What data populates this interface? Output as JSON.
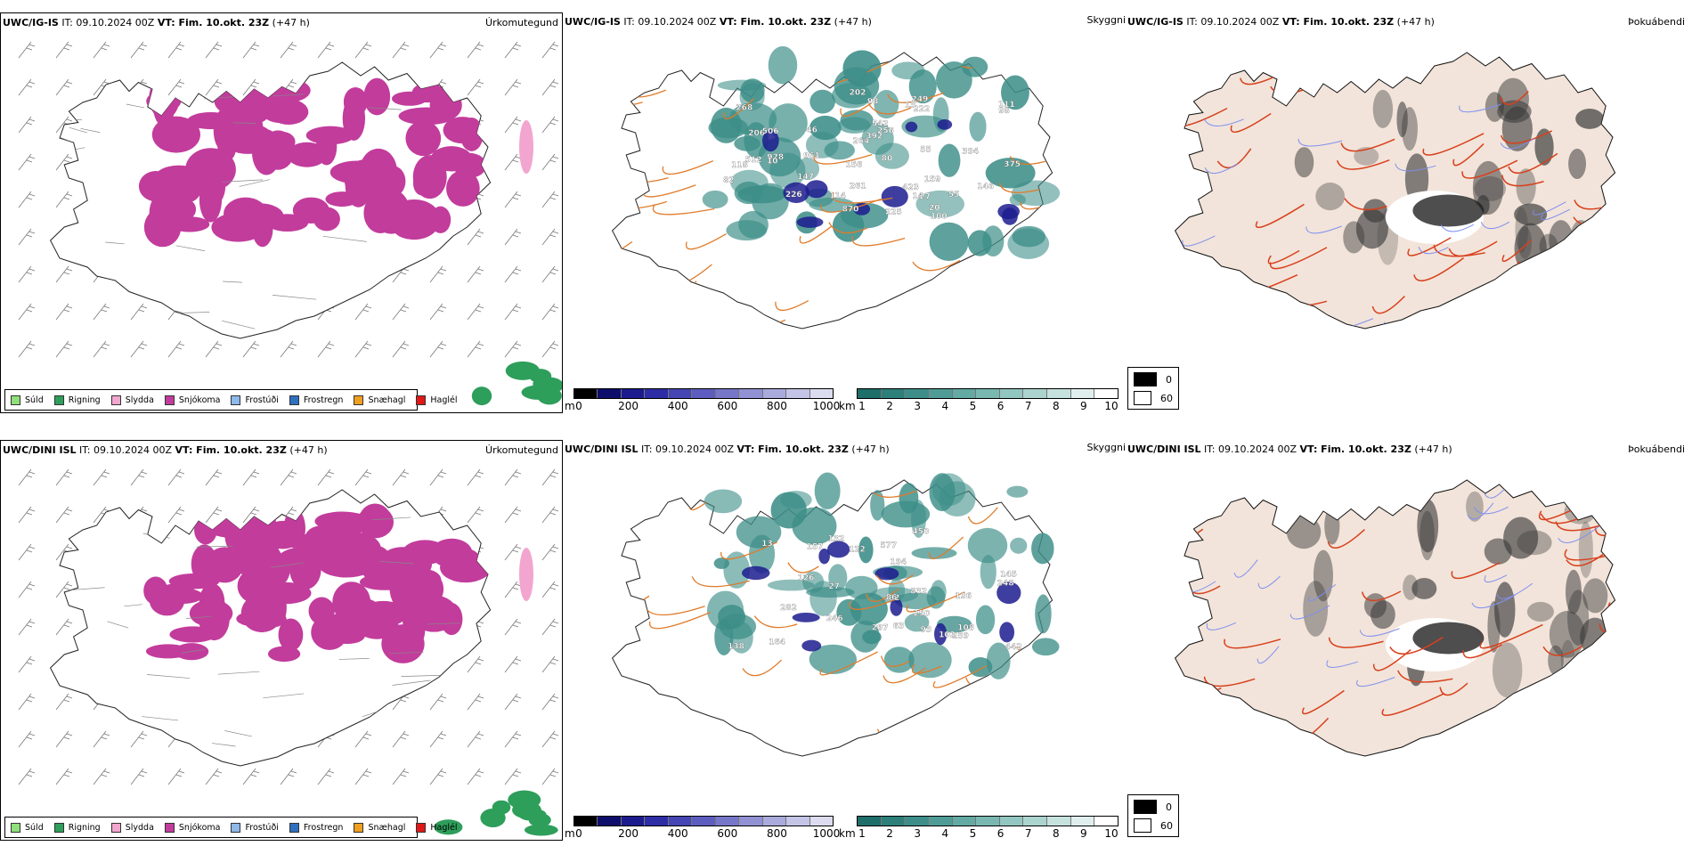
{
  "rows": [
    {
      "model": "UWC/IG-IS",
      "it_label": "IT:",
      "it_value": "09.10.2024 00Z",
      "vt_label": "VT: Fim. 10.okt. 23Z",
      "lead": "(+47 h)",
      "precip_title": "Úrkomutegund",
      "cloud_title": "Skyggni",
      "fog_title": "Þokuábendi",
      "cloud_labels": [
        "870",
        "423",
        "928",
        "375",
        "147",
        "264",
        "206",
        "226",
        "542",
        "512",
        "394",
        "55",
        "961",
        "202",
        "46",
        "118",
        "114",
        "222",
        "249",
        "111",
        "506",
        "392",
        "256",
        "268",
        "146",
        "261",
        "100",
        "10",
        "82",
        "98",
        "13",
        "80",
        "20",
        "14",
        "156",
        "159",
        "225",
        "98",
        "55",
        "27"
      ]
    },
    {
      "model": "UWC/DINI ISL",
      "it_label": "IT:",
      "it_value": "09.10.2024 00Z",
      "vt_label": "VT: Fim. 10.okt. 23Z",
      "lead": "(+47 h)",
      "precip_title": "Úrkomutegund",
      "cloud_title": "Skyggni",
      "fog_title": "Þokuábendi",
      "cloud_labels": [
        "832",
        "27",
        "259",
        "248",
        "126",
        "442",
        "246",
        "132",
        "164",
        "282",
        "138",
        "450",
        "136",
        "577",
        "108",
        "297",
        "157",
        "145",
        "250",
        "194",
        "122",
        "62",
        "102",
        "86",
        "63",
        "13",
        "93"
      ]
    }
  ],
  "precip_legend": [
    {
      "label": "Súld",
      "color": "#8fe07a"
    },
    {
      "label": "Rigning",
      "color": "#2e9e5b"
    },
    {
      "label": "Slydda",
      "color": "#f2a6cf"
    },
    {
      "label": "Snjókoma",
      "color": "#c23c9c"
    },
    {
      "label": "Frostúði",
      "color": "#8fb8ea"
    },
    {
      "label": "Frostregn",
      "color": "#2f6fbf"
    },
    {
      "label": "Snæhagl",
      "color": "#f0a020"
    },
    {
      "label": "Haglél",
      "color": "#e01818"
    }
  ],
  "ceiling_bar": {
    "unit": "m",
    "ticks": [
      "0",
      "200",
      "400",
      "600",
      "800",
      "1000"
    ],
    "colors": [
      "#000000",
      "#0d0d6b",
      "#1c1c8f",
      "#2d2da6",
      "#4545b3",
      "#5d5dbf",
      "#7777c9",
      "#9191d3",
      "#aaaadc",
      "#c4c4e6",
      "#dcdcf0"
    ]
  },
  "visibility_bar": {
    "unit": "km",
    "ticks": [
      "1",
      "2",
      "3",
      "4",
      "5",
      "6",
      "7",
      "8",
      "9",
      "10"
    ],
    "colors": [
      "#1e6e6a",
      "#2d7f7a",
      "#3d8e88",
      "#4f9c96",
      "#63aaa3",
      "#79b8b1",
      "#92c6c0",
      "#acd4cf",
      "#c6e2de",
      "#e0efed",
      "#ffffff"
    ]
  },
  "fog_legend": [
    {
      "label": "0",
      "color": "#000000"
    },
    {
      "label": "60",
      "color": "#ffffff"
    }
  ],
  "colors": {
    "snow": "#c23c9c",
    "rain": "#2e9e5b",
    "sleet": "#f2a6cf",
    "teal": "#3d8e88",
    "navy": "#1c1c8f",
    "road": "#e07b2a",
    "land": "#f2e4da",
    "redroad": "#d8401c",
    "river": "#7f8ff0"
  }
}
